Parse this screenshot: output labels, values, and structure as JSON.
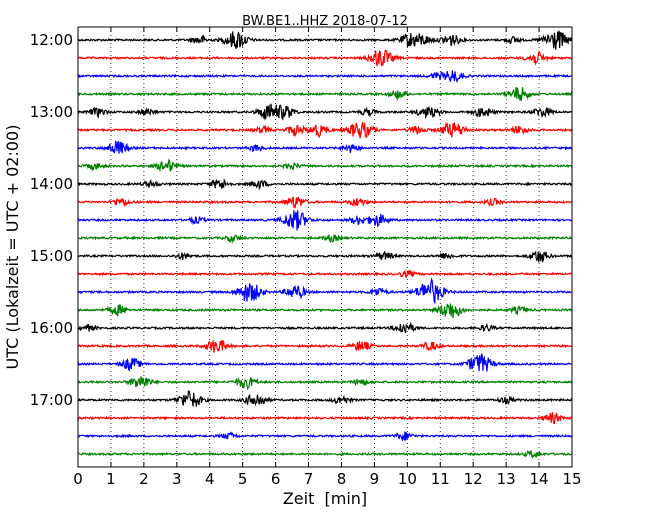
{
  "chart_data": {
    "type": "line",
    "title": "BW.BE1..HHZ 2018-07-12",
    "xlabel": "Zeit  [min]",
    "ylabel": "UTC (Lokalzeit = UTC + 02:00)",
    "xlim": [
      0,
      15
    ],
    "x_ticks": [
      "0",
      "1",
      "2",
      "3",
      "4",
      "5",
      "6",
      "7",
      "8",
      "9",
      "10",
      "11",
      "12",
      "13",
      "14",
      "15"
    ],
    "y_ticks": [
      "12:00",
      "13:00",
      "14:00",
      "15:00",
      "16:00",
      "17:00"
    ],
    "trace_interval_min": 15,
    "grid": "vertical dotted",
    "colors": [
      "#000000",
      "#ff0000",
      "#0000ff",
      "#008000"
    ],
    "series": [
      {
        "start": "12:00",
        "color": "#000000",
        "events": [
          [
            3.7,
            4
          ],
          [
            4.8,
            9
          ],
          [
            10.1,
            7
          ],
          [
            10.5,
            4
          ],
          [
            11.3,
            6
          ],
          [
            13.2,
            3
          ],
          [
            14.5,
            10
          ]
        ]
      },
      {
        "start": "12:15",
        "color": "#ff0000",
        "events": [
          [
            9.2,
            9
          ],
          [
            13.9,
            6
          ]
        ]
      },
      {
        "start": "12:30",
        "color": "#0000ff",
        "events": [
          [
            10.9,
            3
          ],
          [
            11.4,
            6
          ]
        ]
      },
      {
        "start": "12:45",
        "color": "#008000",
        "events": [
          [
            9.7,
            4
          ],
          [
            13.4,
            7
          ]
        ]
      },
      {
        "start": "13:00",
        "color": "#000000",
        "events": [
          [
            0.6,
            4
          ],
          [
            2.1,
            3
          ],
          [
            5.8,
            8
          ],
          [
            6.3,
            6
          ],
          [
            8.8,
            3
          ],
          [
            10.5,
            4
          ],
          [
            10.8,
            3
          ],
          [
            12.3,
            5
          ],
          [
            14.1,
            5
          ]
        ]
      },
      {
        "start": "13:15",
        "color": "#ff0000",
        "events": [
          [
            5.6,
            3
          ],
          [
            6.6,
            5
          ],
          [
            7.3,
            6
          ],
          [
            8.4,
            5
          ],
          [
            8.7,
            6
          ],
          [
            10.3,
            4
          ],
          [
            11.2,
            4
          ],
          [
            11.5,
            6
          ],
          [
            13.4,
            4
          ]
        ]
      },
      {
        "start": "13:30",
        "color": "#0000ff",
        "events": [
          [
            1.2,
            7
          ],
          [
            5.4,
            3
          ],
          [
            8.3,
            4
          ]
        ]
      },
      {
        "start": "13:45",
        "color": "#008000",
        "events": [
          [
            0.5,
            3
          ],
          [
            2.7,
            6
          ],
          [
            6.5,
            3
          ]
        ]
      },
      {
        "start": "14:00",
        "color": "#000000",
        "events": [
          [
            2.2,
            3
          ],
          [
            4.3,
            5
          ],
          [
            5.5,
            4
          ]
        ]
      },
      {
        "start": "14:15",
        "color": "#ff0000",
        "events": [
          [
            1.3,
            4
          ],
          [
            6.6,
            6
          ],
          [
            8.5,
            4
          ],
          [
            12.6,
            3
          ]
        ]
      },
      {
        "start": "14:30",
        "color": "#0000ff",
        "events": [
          [
            3.6,
            3
          ],
          [
            6.6,
            10
          ],
          [
            8.5,
            4
          ],
          [
            9.1,
            6
          ]
        ]
      },
      {
        "start": "14:45",
        "color": "#008000",
        "events": [
          [
            4.7,
            3
          ],
          [
            7.7,
            3
          ]
        ]
      },
      {
        "start": "15:00",
        "color": "#000000",
        "events": [
          [
            3.2,
            3
          ],
          [
            9.3,
            4
          ],
          [
            11.2,
            3
          ],
          [
            14.0,
            6
          ]
        ]
      },
      {
        "start": "15:15",
        "color": "#ff0000",
        "events": [
          [
            10.0,
            3
          ]
        ]
      },
      {
        "start": "15:30",
        "color": "#0000ff",
        "events": [
          [
            5.2,
            10
          ],
          [
            6.6,
            7
          ],
          [
            9.1,
            4
          ],
          [
            10.7,
            12
          ]
        ]
      },
      {
        "start": "15:45",
        "color": "#008000",
        "events": [
          [
            1.2,
            5
          ],
          [
            11.3,
            9
          ],
          [
            13.4,
            3
          ]
        ]
      },
      {
        "start": "16:00",
        "color": "#000000",
        "events": [
          [
            0.3,
            3
          ],
          [
            9.9,
            6
          ],
          [
            12.4,
            3
          ]
        ]
      },
      {
        "start": "16:15",
        "color": "#ff0000",
        "events": [
          [
            4.2,
            7
          ],
          [
            8.6,
            5
          ],
          [
            10.7,
            4
          ]
        ]
      },
      {
        "start": "16:30",
        "color": "#0000ff",
        "events": [
          [
            1.6,
            6
          ],
          [
            12.2,
            10
          ]
        ]
      },
      {
        "start": "16:45",
        "color": "#008000",
        "events": [
          [
            1.9,
            7
          ],
          [
            5.1,
            6
          ],
          [
            8.6,
            3
          ]
        ]
      },
      {
        "start": "17:00",
        "color": "#000000",
        "events": [
          [
            3.4,
            9
          ],
          [
            5.4,
            7
          ],
          [
            8.0,
            4
          ],
          [
            13.0,
            3
          ]
        ]
      },
      {
        "start": "17:15",
        "color": "#ff0000",
        "events": [
          [
            14.4,
            5
          ]
        ]
      },
      {
        "start": "17:30",
        "color": "#0000ff",
        "events": [
          [
            4.6,
            3
          ],
          [
            9.9,
            4
          ]
        ]
      },
      {
        "start": "17:45",
        "color": "#008000",
        "events": [
          [
            13.8,
            3
          ]
        ]
      }
    ]
  }
}
